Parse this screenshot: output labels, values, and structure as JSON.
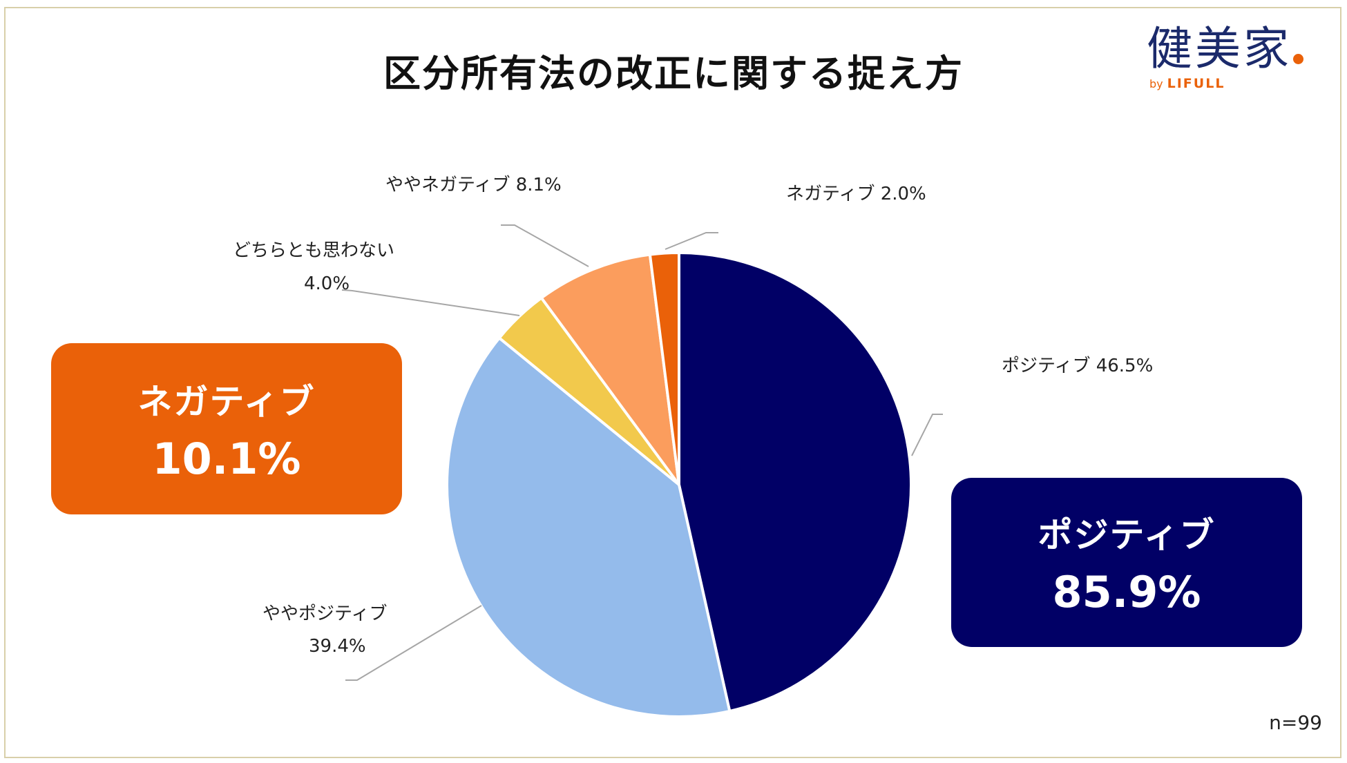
{
  "page_title": "区分所有法の改正に関する捉え方",
  "logo": {
    "brand": "健美家",
    "by": "by",
    "company": "LIFULL"
  },
  "colors": {
    "positive": "#010066",
    "somewhat_positive": "#94bbeb",
    "neither": "#f2c94c",
    "somewhat_negative": "#fb9d5d",
    "negative": "#ea6109",
    "frame": "#d8cfa9"
  },
  "summary": {
    "negative": {
      "label": "ネガティブ",
      "value": "10.1%"
    },
    "positive": {
      "label": "ポジティブ",
      "value": "85.9%"
    }
  },
  "sample_size": "n=99",
  "chart_data": {
    "type": "pie",
    "title": "区分所有法の改正に関する捉え方",
    "start": "12 o'clock",
    "direction": "clockwise",
    "slices": [
      {
        "label": "ポジティブ",
        "value": 46.5,
        "value_label": "46.5%",
        "color": "#010066"
      },
      {
        "label": "ややポジティブ",
        "value": 39.4,
        "value_label": "39.4%",
        "color": "#94bbeb"
      },
      {
        "label": "どちらとも思わない",
        "value": 4.0,
        "value_label": "4.0%",
        "color": "#f2c94c"
      },
      {
        "label": "ややネガティブ",
        "value": 8.1,
        "value_label": "8.1%",
        "color": "#fb9d5d"
      },
      {
        "label": "ネガティブ",
        "value": 2.0,
        "value_label": "2.0%",
        "color": "#ea6109"
      }
    ]
  }
}
